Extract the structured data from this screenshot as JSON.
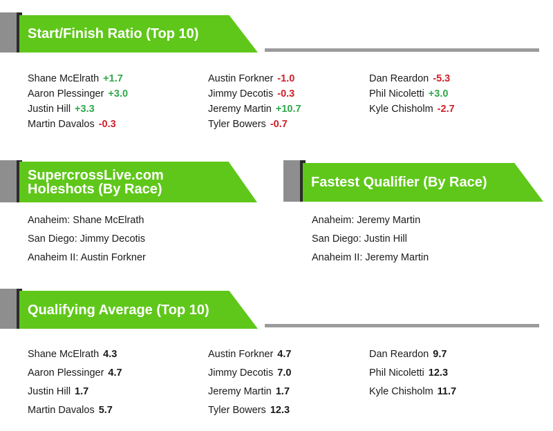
{
  "sections": {
    "start_finish": {
      "title": "Start/Finish Ratio (Top 10)",
      "columns": [
        [
          {
            "name": "Shane McElrath",
            "value": "+1.7",
            "tone": "pos"
          },
          {
            "name": "Aaron Plessinger",
            "value": "+3.0",
            "tone": "pos"
          },
          {
            "name": "Justin Hill",
            "value": "+3.3",
            "tone": "pos"
          },
          {
            "name": "Martin Davalos",
            "value": "-0.3",
            "tone": "neg"
          }
        ],
        [
          {
            "name": "Austin Forkner",
            "value": "-1.0",
            "tone": "neg"
          },
          {
            "name": "Jimmy Decotis",
            "value": "-0.3",
            "tone": "neg"
          },
          {
            "name": "Jeremy Martin",
            "value": "+10.7",
            "tone": "pos"
          },
          {
            "name": "Tyler Bowers",
            "value": "-0.7",
            "tone": "neg"
          }
        ],
        [
          {
            "name": "Dan Reardon",
            "value": "-5.3",
            "tone": "neg"
          },
          {
            "name": "Phil Nicoletti",
            "value": "+3.0",
            "tone": "pos"
          },
          {
            "name": "Kyle Chisholm",
            "value": "-2.7",
            "tone": "neg"
          }
        ]
      ]
    },
    "holeshots": {
      "title_line1": "SupercrossLive.com",
      "title_line2": "Holeshots (By Race)",
      "items": [
        "Anaheim: Shane McElrath",
        "San Diego: Jimmy Decotis",
        "Anaheim II: Austin Forkner"
      ]
    },
    "fastest_qualifier": {
      "title": "Fastest Qualifier (By Race)",
      "items": [
        "Anaheim: Jeremy Martin",
        "San Diego: Justin Hill",
        "Anaheim II: Jeremy Martin"
      ]
    },
    "qualifying_average": {
      "title": "Qualifying Average (Top 10)",
      "columns": [
        [
          {
            "name": "Shane McElrath",
            "value": "4.3"
          },
          {
            "name": "Aaron Plessinger",
            "value": "4.7"
          },
          {
            "name": "Justin Hill",
            "value": "1.7"
          },
          {
            "name": "Martin Davalos",
            "value": "5.7"
          }
        ],
        [
          {
            "name": "Austin Forkner",
            "value": "4.7"
          },
          {
            "name": "Jimmy Decotis",
            "value": "7.0"
          },
          {
            "name": "Jeremy Martin",
            "value": "1.7"
          },
          {
            "name": "Tyler Bowers",
            "value": "12.3"
          }
        ],
        [
          {
            "name": "Dan Reardon",
            "value": "9.7"
          },
          {
            "name": "Phil Nicoletti",
            "value": "12.3"
          },
          {
            "name": "Kyle Chisholm",
            "value": "11.7"
          }
        ]
      ]
    }
  },
  "colors": {
    "banner_green": "#5fc71a",
    "banner_gray": "#8e8e8e",
    "banner_shadow": "#2b2b2b",
    "positive": "#2fa84a",
    "negative": "#d0202a"
  }
}
